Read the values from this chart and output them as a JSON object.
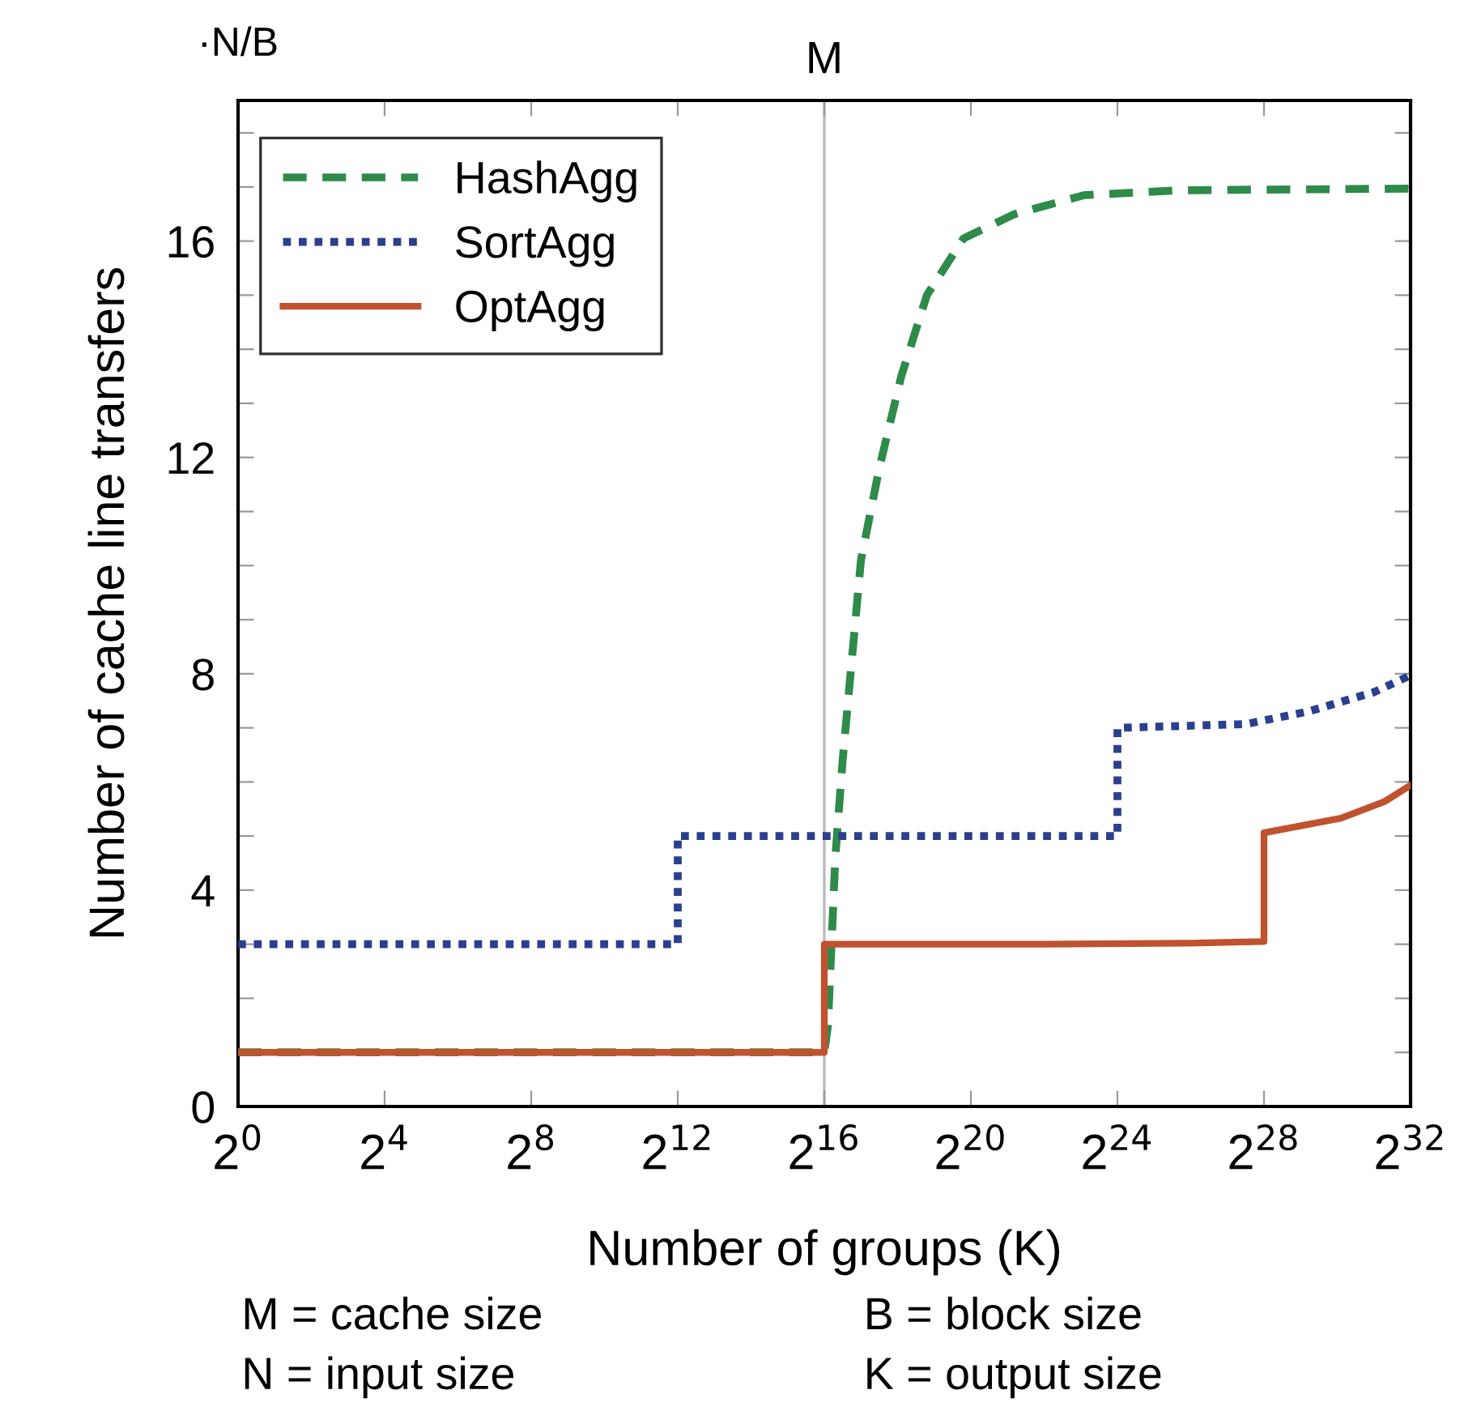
{
  "chart_data": {
    "type": "line",
    "xlabel": "Number of groups (K)",
    "ylabel": "Number of cache line transfers",
    "log": "x",
    "xlim": [
      1,
      4294967296
    ],
    "xticks": [
      {
        "value": 1,
        "label": "2$^{0}$"
      },
      {
        "value": 16,
        "label": "2$^{4}$"
      },
      {
        "value": 256,
        "label": "2$^{8}$"
      },
      {
        "value": 4096,
        "label": "2$^{12}$"
      },
      {
        "value": 65536,
        "label": "2$^{16}$"
      },
      {
        "value": 1048576,
        "label": "2$^{20}$"
      },
      {
        "value": 16777216,
        "label": "2$^{24}$"
      },
      {
        "value": 268435456,
        "label": "2$^{28}$"
      },
      {
        "value": 4294967296,
        "label": "2$^{32}$"
      }
    ],
    "ylim": [
      0,
      18.6
    ],
    "yticks": [
      0,
      {
        "value": 1,
        "label": null
      },
      {
        "value": 2,
        "label": null
      },
      {
        "value": 3,
        "label": null
      },
      4,
      {
        "value": 5,
        "label": null
      },
      {
        "value": 6,
        "label": null
      },
      {
        "value": 7,
        "label": null
      },
      8,
      {
        "value": 9,
        "label": null
      },
      {
        "value": 10,
        "label": null
      },
      {
        "value": 11,
        "label": null
      },
      12,
      {
        "value": 13,
        "label": null
      },
      {
        "value": 14,
        "label": null
      },
      {
        "value": 15,
        "label": null
      },
      16,
      {
        "value": 17,
        "label": null
      },
      {
        "value": 18,
        "label": null
      }
    ],
    "grid": false,
    "legend": "top left",
    "ref_lines": [
      {
        "axis": "x",
        "value": 65536,
        "label": "M",
        "color": "#bbbbbb"
      }
    ],
    "annotations": [
      "·N/B",
      "M = cache size",
      "N = input size",
      "B = block size",
      "K = output size"
    ],
    "series": [
      {
        "name": "HashAgg",
        "color": "#2e8b4a",
        "line_style": "dashed",
        "x": [
          1,
          65536,
          70240,
          80684,
          92682,
          131072,
          185364,
          280958,
          456419,
          912838,
          2409000,
          8990930,
          54509000,
          4294967296
        ],
        "values": [
          1,
          1,
          1.5,
          4.6,
          6.4,
          10.1,
          11.8,
          13.5,
          15.0,
          16.05,
          16.5,
          16.85,
          16.94,
          16.97
        ]
      },
      {
        "name": "SortAgg",
        "color": "#2b3f8f",
        "line_style": "dotted",
        "x": [
          1,
          4096,
          4096,
          16777216,
          16777216,
          189812531,
          616734000,
          2147483648,
          4294967296
        ],
        "values": [
          3,
          3,
          5,
          5,
          7,
          7.07,
          7.3,
          7.66,
          7.97
        ]
      },
      {
        "name": "OptAgg",
        "color": "#c0522f",
        "line_style": "solid",
        "x": [
          1,
          65536,
          65536,
          4194304,
          67108864,
          268435456,
          268435456,
          1150800000,
          2643862000,
          4294967296
        ],
        "values": [
          1,
          1,
          3,
          3,
          3.02,
          3.05,
          5.06,
          5.33,
          5.64,
          5.94
        ]
      }
    ]
  }
}
